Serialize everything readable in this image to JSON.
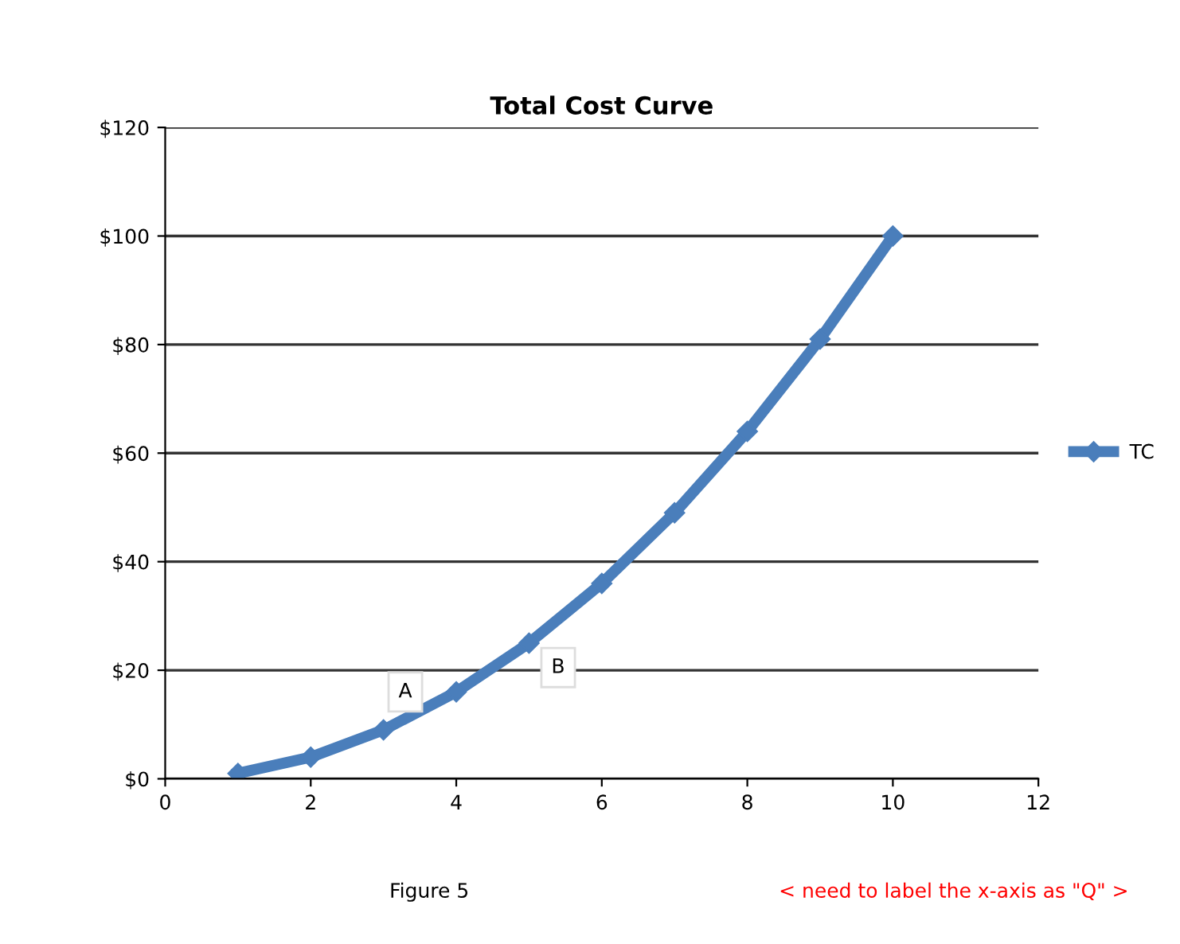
{
  "chart_data": {
    "type": "line",
    "title": "Total Cost Curve",
    "x": [
      1,
      2,
      3,
      4,
      5,
      6,
      7,
      8,
      9,
      10
    ],
    "series": [
      {
        "name": "TC",
        "color": "#4a7ebb",
        "values": [
          1,
          4,
          9,
          16,
          25,
          36,
          49,
          64,
          81,
          100
        ]
      }
    ],
    "xlim": [
      0,
      12
    ],
    "xticks": [
      0,
      2,
      4,
      6,
      8,
      10,
      12
    ],
    "ylim": [
      0,
      120
    ],
    "yticks": [
      {
        "value": 0,
        "label": "$0"
      },
      {
        "value": 20,
        "label": "$20"
      },
      {
        "value": 40,
        "label": "$40"
      },
      {
        "value": 60,
        "label": "$60"
      },
      {
        "value": 80,
        "label": "$80"
      },
      {
        "value": 100,
        "label": "$100"
      },
      {
        "value": 120,
        "label": "$120"
      }
    ],
    "grid": "y",
    "legend": "right",
    "marker": "diamond",
    "line_style": "solid",
    "annotations": [
      {
        "text": "A",
        "x": 3.3,
        "y": 16
      },
      {
        "text": "B",
        "x": 5.4,
        "y": 20.5
      },
      "Figure 5",
      "< need to label the x-axis as \"Q\" >"
    ]
  }
}
